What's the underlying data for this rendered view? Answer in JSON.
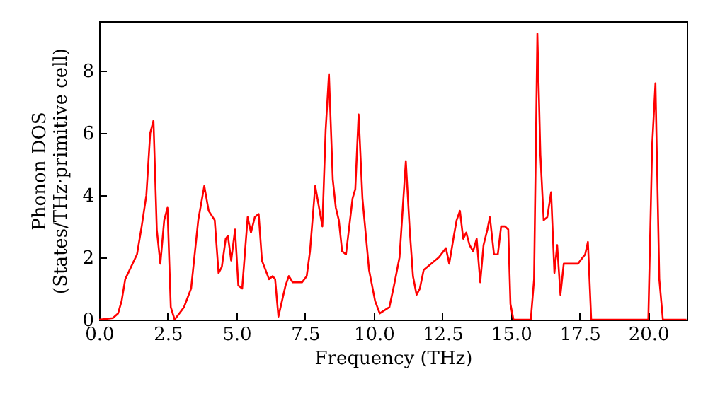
{
  "chart_data": {
    "type": "line",
    "xlabel": "Frequency (THz)",
    "ylabel": "Phonon DOS\n(States/THz·primitive cell)",
    "x": [
      0,
      0.5,
      0.69,
      0.82,
      0.95,
      1.38,
      1.55,
      1.72,
      1.86,
      1.98,
      2.1,
      2.23,
      2.37,
      2.49,
      2.61,
      2.75,
      3.09,
      3.35,
      3.61,
      3.83,
      3.99,
      4.21,
      4.35,
      4.47,
      4.61,
      4.69,
      4.81,
      4.95,
      5.07,
      5.21,
      5.41,
      5.53,
      5.67,
      5.81,
      5.93,
      6.19,
      6.32,
      6.41,
      6.53,
      6.79,
      6.91,
      7.05,
      7.39,
      7.56,
      7.68,
      7.87,
      8.13,
      8.25,
      8.37,
      8.51,
      8.62,
      8.73,
      8.85,
      8.99,
      9.23,
      9.33,
      9.45,
      9.59,
      9.83,
      10.05,
      10.22,
      10.57,
      10.74,
      10.94,
      11.17,
      11.31,
      11.43,
      11.56,
      11.68,
      11.82,
      12.37,
      12.63,
      12.75,
      12.92,
      13.02,
      13.14,
      13.26,
      13.37,
      13.49,
      13.62,
      13.75,
      13.88,
      14.0,
      14.14,
      14.23,
      14.38,
      14.52,
      14.64,
      14.78,
      14.9,
      14.98,
      15.09,
      15.72,
      15.84,
      15.96,
      16.07,
      16.19,
      16.32,
      16.46,
      16.58,
      16.68,
      16.8,
      16.92,
      17.18,
      17.44,
      17.61,
      17.7,
      17.8,
      17.92,
      20.0,
      20.14,
      20.26,
      20.4,
      20.53,
      21.39
    ],
    "series": [
      {
        "color": "#ff0000",
        "values": [
          0,
          0.05,
          0.2,
          0.6,
          1.3,
          2.1,
          3.0,
          4.0,
          6.0,
          6.4,
          2.9,
          1.8,
          3.2,
          3.6,
          0.4,
          0,
          0.4,
          1.0,
          3.2,
          4.3,
          3.5,
          3.2,
          1.5,
          1.7,
          2.6,
          2.7,
          1.9,
          2.9,
          1.1,
          1.0,
          3.3,
          2.8,
          3.3,
          3.4,
          1.9,
          1.3,
          1.4,
          1.3,
          0.1,
          1.1,
          1.4,
          1.2,
          1.2,
          1.4,
          2.2,
          4.3,
          3.0,
          6.1,
          7.9,
          4.5,
          3.6,
          3.2,
          2.2,
          2.1,
          3.9,
          4.2,
          6.6,
          3.9,
          1.6,
          0.6,
          0.2,
          0.4,
          1.1,
          2.0,
          5.1,
          2.9,
          1.4,
          0.8,
          1.0,
          1.6,
          2.0,
          2.3,
          1.8,
          2.7,
          3.2,
          3.5,
          2.6,
          2.8,
          2.4,
          2.2,
          2.6,
          1.2,
          2.4,
          2.9,
          3.3,
          2.1,
          2.1,
          3.0,
          3.0,
          2.9,
          0.5,
          0,
          0,
          1.3,
          9.2,
          5.3,
          3.2,
          3.3,
          4.1,
          1.5,
          2.4,
          0.8,
          1.8,
          1.8,
          1.8,
          2.0,
          2.1,
          2.5,
          0,
          0,
          5.6,
          7.6,
          1.3,
          0,
          0
        ]
      }
    ],
    "xlim": [
      0,
      21.4
    ],
    "ylim": [
      0,
      9.6
    ],
    "xticks": [
      {
        "value": 0,
        "label": "0.0"
      },
      {
        "value": 2.5,
        "label": "2.5"
      },
      {
        "value": 5,
        "label": "5.0"
      },
      {
        "value": 7.5,
        "label": "7.5"
      },
      {
        "value": 10,
        "label": "10.0"
      },
      {
        "value": 12.5,
        "label": "12.5"
      },
      {
        "value": 15,
        "label": "15.0"
      },
      {
        "value": 17.5,
        "label": "17.5"
      },
      {
        "value": 20,
        "label": "20.0"
      }
    ],
    "yticks": [
      0,
      2,
      4,
      6,
      8
    ],
    "grid": false,
    "marker": "none",
    "line_style": "solid"
  }
}
